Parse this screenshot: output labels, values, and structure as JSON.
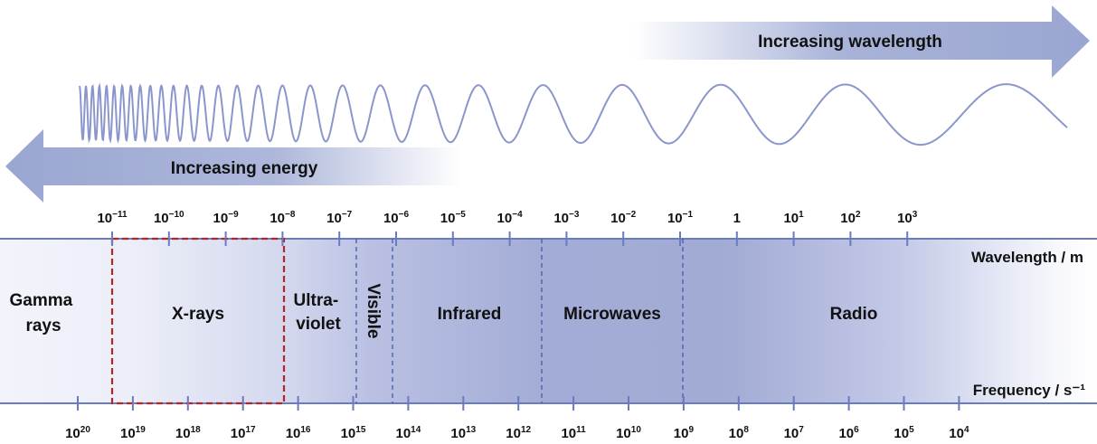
{
  "arrows": {
    "wavelength_label": "Increasing wavelength",
    "energy_label": "Increasing energy"
  },
  "axes": {
    "wavelength_title": "Wavelength / m",
    "frequency_title": "Frequency / s⁻¹"
  },
  "wavelength_ticks": [
    {
      "base": "10",
      "exp": "−11"
    },
    {
      "base": "10",
      "exp": "−10"
    },
    {
      "base": "10",
      "exp": "−9"
    },
    {
      "base": "10",
      "exp": "−8"
    },
    {
      "base": "10",
      "exp": "−7"
    },
    {
      "base": "10",
      "exp": "−6"
    },
    {
      "base": "10",
      "exp": "−5"
    },
    {
      "base": "10",
      "exp": "−4"
    },
    {
      "base": "10",
      "exp": "−3"
    },
    {
      "base": "10",
      "exp": "−2"
    },
    {
      "base": "10",
      "exp": "−1"
    },
    {
      "base": "1",
      "exp": ""
    },
    {
      "base": "10",
      "exp": "1"
    },
    {
      "base": "10",
      "exp": "2"
    },
    {
      "base": "10",
      "exp": "3"
    }
  ],
  "frequency_ticks": [
    {
      "base": "10",
      "exp": "20"
    },
    {
      "base": "10",
      "exp": "19"
    },
    {
      "base": "10",
      "exp": "18"
    },
    {
      "base": "10",
      "exp": "17"
    },
    {
      "base": "10",
      "exp": "16"
    },
    {
      "base": "10",
      "exp": "15"
    },
    {
      "base": "10",
      "exp": "14"
    },
    {
      "base": "10",
      "exp": "13"
    },
    {
      "base": "10",
      "exp": "12"
    },
    {
      "base": "10",
      "exp": "11"
    },
    {
      "base": "10",
      "exp": "10"
    },
    {
      "base": "10",
      "exp": "9"
    },
    {
      "base": "10",
      "exp": "8"
    },
    {
      "base": "10",
      "exp": "7"
    },
    {
      "base": "10",
      "exp": "6"
    },
    {
      "base": "10",
      "exp": "5"
    },
    {
      "base": "10",
      "exp": "4"
    }
  ],
  "regions": {
    "gamma": [
      "Gamma",
      "rays"
    ],
    "xrays": "X-rays",
    "uv": [
      "Ultra-",
      "violet"
    ],
    "visible": "Visible",
    "infrared": "Infrared",
    "microwaves": "Microwaves",
    "radio": "Radio"
  },
  "colors": {
    "arrow": "#9aa6d2",
    "band_dark": "#a2abd4",
    "band_light": "#eceef8",
    "axis_line": "#6b7bc0",
    "wave": "#8a96cc",
    "highlight": "#b52525"
  }
}
